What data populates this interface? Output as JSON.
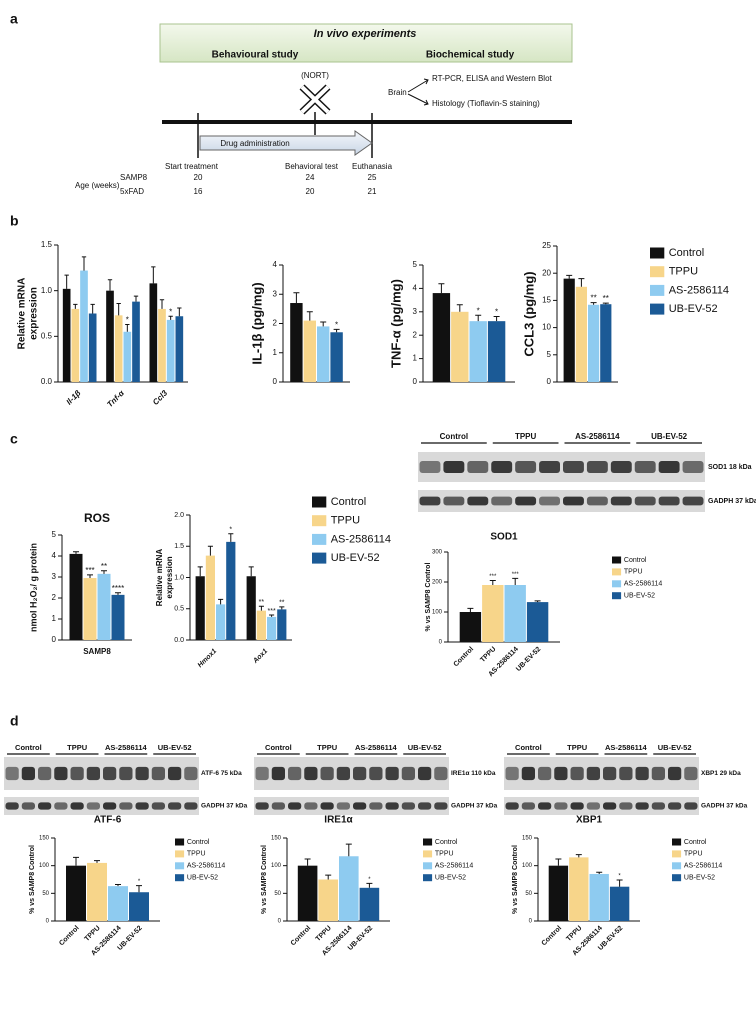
{
  "panel_labels": [
    "a",
    "b",
    "c",
    "d"
  ],
  "timeline": {
    "title": "In vivo experiments",
    "left_phase": "Behavioural study",
    "right_phase": "Biochemical study",
    "test": "(NORT)",
    "tissue": "Brain",
    "analyses": [
      "RT-PCR, ELISA and Western Blot",
      "Histology (Tioflavin-S staining)"
    ],
    "arrow": "Drug administration",
    "events": [
      "Start treatment",
      "Behavioral test",
      "Euthanasia"
    ],
    "age_label": "Age (weeks)",
    "strains": [
      {
        "name": "SAMP8",
        "ages": [
          20,
          24,
          25
        ]
      },
      {
        "name": "5xFAD",
        "ages": [
          16,
          20,
          21
        ]
      }
    ]
  },
  "blot_c": {
    "lanes": [
      "Control",
      "TPPU",
      "AS-2586114",
      "UB-EV-52"
    ],
    "bands": [
      "SOD1 18 kDa",
      "GADPH 37 kDa"
    ]
  },
  "blots_d": [
    {
      "lanes": [
        "Control",
        "TPPU",
        "AS-2586114",
        "UB-EV-52"
      ],
      "bands": [
        "ATF-6 75 kDa",
        "GADPH 37 kDa"
      ]
    },
    {
      "lanes": [
        "Control",
        "TPPU",
        "AS-2586114",
        "UB-EV-52"
      ],
      "bands": [
        "IRE1α 110 kDa",
        "GADPH 37 kDa"
      ]
    },
    {
      "lanes": [
        "Control",
        "TPPU",
        "AS-2586114",
        "UB-EV-52"
      ],
      "bands": [
        "XBP1 29 kDa",
        "GADPH 37 kDa"
      ]
    }
  ],
  "chart_data": [
    {
      "type": "bar",
      "ylabel": [
        "Relative mRNA",
        "expression"
      ],
      "categories": [
        "Il-1β",
        "Tnf-α",
        "Ccl3"
      ],
      "ylim": [
        0,
        1.5
      ],
      "yticks": [
        {
          "value": 0,
          "label": "0.0"
        },
        {
          "value": 0.5,
          "label": "0.5"
        },
        {
          "value": 1,
          "label": "1.0"
        },
        {
          "value": 1.5,
          "label": "1.5"
        }
      ],
      "series": [
        {
          "name": "Control",
          "color": "#111111",
          "values": [
            1.02,
            1.0,
            1.08
          ],
          "errors": [
            0.15,
            0.12,
            0.18
          ]
        },
        {
          "name": "TPPU",
          "color": "#f7d58a",
          "values": [
            0.8,
            0.73,
            0.8
          ],
          "errors": [
            0.05,
            0.13,
            0.1
          ]
        },
        {
          "name": "AS-2586114",
          "color": "#8ecbf0",
          "values": [
            1.22,
            0.55,
            0.68
          ],
          "errors": [
            0.15,
            0.08,
            0.04
          ],
          "stars": [
            null,
            "*",
            "*"
          ]
        },
        {
          "name": "UB-EV-52",
          "color": "#1b5a96",
          "values": [
            0.75,
            0.88,
            0.72
          ],
          "errors": [
            0.1,
            0.06,
            0.09
          ]
        }
      ]
    },
    {
      "type": "bar",
      "ylabel": "IL-1β (pg/mg)",
      "categories": [
        null
      ],
      "ylim": [
        0,
        4
      ],
      "yticks": [
        0,
        1,
        2,
        3,
        4
      ],
      "series": [
        {
          "name": "Control",
          "color": "#111111",
          "values": [
            2.7
          ],
          "errors": [
            0.35
          ]
        },
        {
          "name": "TPPU",
          "color": "#f7d58a",
          "values": [
            2.1
          ],
          "errors": [
            0.3
          ]
        },
        {
          "name": "AS-2586114",
          "color": "#8ecbf0",
          "values": [
            1.9
          ],
          "errors": [
            0.15
          ]
        },
        {
          "name": "UB-EV-52",
          "color": "#1b5a96",
          "values": [
            1.7
          ],
          "errors": [
            0.1
          ],
          "stars": [
            "*"
          ]
        }
      ]
    },
    {
      "type": "bar",
      "ylabel": "TNF-α (pg/mg)",
      "categories": [
        null
      ],
      "ylim": [
        0,
        5
      ],
      "yticks": [
        0,
        1,
        2,
        3,
        4,
        5
      ],
      "series": [
        {
          "name": "Control",
          "color": "#111111",
          "values": [
            3.8
          ],
          "errors": [
            0.4
          ]
        },
        {
          "name": "TPPU",
          "color": "#f7d58a",
          "values": [
            3.0
          ],
          "errors": [
            0.3
          ]
        },
        {
          "name": "AS-2586114",
          "color": "#8ecbf0",
          "values": [
            2.6
          ],
          "errors": [
            0.25
          ],
          "stars": [
            "*"
          ]
        },
        {
          "name": "UB-EV-52",
          "color": "#1b5a96",
          "values": [
            2.6
          ],
          "errors": [
            0.2
          ],
          "stars": [
            "*"
          ]
        }
      ]
    },
    {
      "type": "bar",
      "ylabel": "CCL3 (pg/mg)",
      "categories": [
        null
      ],
      "ylim": [
        0,
        25
      ],
      "yticks": [
        0,
        5,
        10,
        15,
        20,
        25
      ],
      "legend": "right",
      "series": [
        {
          "name": "Control",
          "color": "#111111",
          "values": [
            19
          ],
          "errors": [
            0.6
          ]
        },
        {
          "name": "TPPU",
          "color": "#f7d58a",
          "values": [
            17.5
          ],
          "errors": [
            1.5
          ]
        },
        {
          "name": "AS-2586114",
          "color": "#8ecbf0",
          "values": [
            14.2
          ],
          "errors": [
            0.4
          ],
          "stars": [
            "**"
          ]
        },
        {
          "name": "UB-EV-52",
          "color": "#1b5a96",
          "values": [
            14.3
          ],
          "errors": [
            0.2
          ],
          "stars": [
            "**"
          ]
        }
      ]
    },
    {
      "type": "bar",
      "title": "ROS",
      "ylabel": "nmol H₂O₂/ g protein",
      "categories": [
        "SAMP8"
      ],
      "ylim": [
        0,
        5
      ],
      "yticks": [
        0,
        1,
        2,
        3,
        4,
        5
      ],
      "series": [
        {
          "name": "Control",
          "color": "#111111",
          "values": [
            4.1
          ],
          "errors": [
            0.1
          ]
        },
        {
          "name": "TPPU",
          "color": "#f7d58a",
          "values": [
            2.95
          ],
          "errors": [
            0.15
          ],
          "stars": [
            "***"
          ]
        },
        {
          "name": "AS-2586114",
          "color": "#8ecbf0",
          "values": [
            3.15
          ],
          "errors": [
            0.15
          ],
          "stars": [
            "**"
          ]
        },
        {
          "name": "UB-EV-52",
          "color": "#1b5a96",
          "values": [
            2.15
          ],
          "errors": [
            0.1
          ],
          "stars": [
            "****"
          ]
        }
      ]
    },
    {
      "type": "bar",
      "ylabel": [
        "Relative mRNA",
        "expression"
      ],
      "categories": [
        "Hmox1",
        "Aox1"
      ],
      "legend": "right",
      "ylim": [
        0,
        2
      ],
      "yticks": [
        {
          "value": 0,
          "label": "0.0"
        },
        {
          "value": 0.5,
          "label": "0.5"
        },
        {
          "value": 1,
          "label": "1.0"
        },
        {
          "value": 1.5,
          "label": "1.5"
        },
        {
          "value": 2,
          "label": "2.0"
        }
      ],
      "series": [
        {
          "name": "Control",
          "color": "#111111",
          "values": [
            1.02,
            1.02
          ],
          "errors": [
            0.15,
            0.15
          ]
        },
        {
          "name": "TPPU",
          "color": "#f7d58a",
          "values": [
            1.35,
            0.47
          ],
          "errors": [
            0.15,
            0.07
          ],
          "stars": [
            null,
            "**"
          ]
        },
        {
          "name": "AS-2586114",
          "color": "#8ecbf0",
          "values": [
            0.57,
            0.37
          ],
          "errors": [
            0.08,
            0.03
          ],
          "stars": [
            null,
            "***"
          ]
        },
        {
          "name": "UB-EV-52",
          "color": "#1b5a96",
          "values": [
            1.57,
            0.49
          ],
          "errors": [
            0.13,
            0.04
          ],
          "stars": [
            "*",
            "**"
          ]
        }
      ]
    },
    {
      "type": "bar",
      "title": "SOD1",
      "ylabel": "% vs SAMP8 Control",
      "categories": [
        null
      ],
      "xlabels": "series",
      "legend": "right",
      "ylim": [
        0,
        300
      ],
      "yticks": [
        0,
        100,
        200,
        300
      ],
      "series": [
        {
          "name": "Control",
          "color": "#111111",
          "values": [
            100
          ],
          "errors": [
            12
          ]
        },
        {
          "name": "TPPU",
          "color": "#f7d58a",
          "values": [
            190
          ],
          "errors": [
            15
          ],
          "stars": [
            "***"
          ]
        },
        {
          "name": "AS-2586114",
          "color": "#8ecbf0",
          "values": [
            190
          ],
          "errors": [
            22
          ],
          "stars": [
            "***"
          ]
        },
        {
          "name": "UB-EV-52",
          "color": "#1b5a96",
          "values": [
            133
          ],
          "errors": [
            4
          ]
        }
      ]
    },
    {
      "type": "bar",
      "title": "ATF-6",
      "ylabel": "% vs SAMP8 Control",
      "categories": [
        null
      ],
      "xlabels": "series",
      "legend": "right",
      "ylim": [
        0,
        150
      ],
      "yticks": [
        0,
        50,
        100,
        150
      ],
      "series": [
        {
          "name": "Control",
          "color": "#111111",
          "values": [
            100
          ],
          "errors": [
            15
          ]
        },
        {
          "name": "TPPU",
          "color": "#f7d58a",
          "values": [
            105
          ],
          "errors": [
            4
          ]
        },
        {
          "name": "AS-2586114",
          "color": "#8ecbf0",
          "values": [
            63
          ],
          "errors": [
            3
          ]
        },
        {
          "name": "UB-EV-52",
          "color": "#1b5a96",
          "values": [
            52
          ],
          "errors": [
            12
          ],
          "stars": [
            "*"
          ]
        }
      ]
    },
    {
      "type": "bar",
      "title": "IRE1α",
      "ylabel": "% vs SAMP8 Control",
      "categories": [
        null
      ],
      "xlabels": "series",
      "legend": "right",
      "ylim": [
        0,
        150
      ],
      "yticks": [
        0,
        50,
        100,
        150
      ],
      "series": [
        {
          "name": "Control",
          "color": "#111111",
          "values": [
            100
          ],
          "errors": [
            12
          ]
        },
        {
          "name": "TPPU",
          "color": "#f7d58a",
          "values": [
            75
          ],
          "errors": [
            8
          ]
        },
        {
          "name": "AS-2586114",
          "color": "#8ecbf0",
          "values": [
            117
          ],
          "errors": [
            22
          ]
        },
        {
          "name": "UB-EV-52",
          "color": "#1b5a96",
          "values": [
            60
          ],
          "errors": [
            8
          ],
          "stars": [
            "*"
          ]
        }
      ]
    },
    {
      "type": "bar",
      "title": "XBP1",
      "ylabel": "% vs SAMP8 Control",
      "categories": [
        null
      ],
      "xlabels": "series",
      "legend": "right",
      "ylim": [
        0,
        150
      ],
      "yticks": [
        0,
        50,
        100,
        150
      ],
      "series": [
        {
          "name": "Control",
          "color": "#111111",
          "values": [
            100
          ],
          "errors": [
            12
          ]
        },
        {
          "name": "TPPU",
          "color": "#f7d58a",
          "values": [
            115
          ],
          "errors": [
            5
          ]
        },
        {
          "name": "AS-2586114",
          "color": "#8ecbf0",
          "values": [
            85
          ],
          "errors": [
            3
          ]
        },
        {
          "name": "UB-EV-52",
          "color": "#1b5a96",
          "values": [
            62
          ],
          "errors": [
            12
          ],
          "stars": [
            "*"
          ]
        }
      ]
    }
  ]
}
